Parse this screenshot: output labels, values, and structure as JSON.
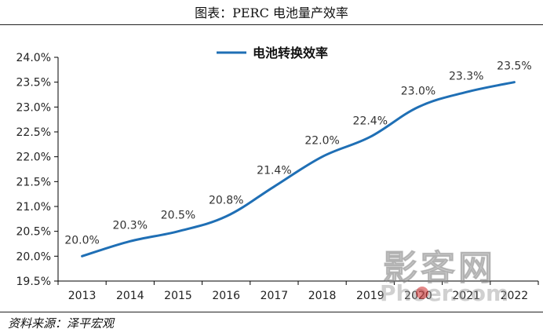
{
  "figure_title": "图表：PERC 电池量产效率",
  "source_text": "资料来源：泽平宏观",
  "watermark": {
    "name": "影客网",
    "site": "Phoer.com"
  },
  "colors": {
    "line": "#1f6fb5",
    "axis": "#000000",
    "text": "#222222"
  },
  "chart_data": {
    "type": "line",
    "x": [
      "2013",
      "2014",
      "2015",
      "2016",
      "2017",
      "2018",
      "2019",
      "2020",
      "2021",
      "2022"
    ],
    "series": [
      {
        "name": "电池转换效率",
        "values": [
          20.0,
          20.3,
          20.5,
          20.8,
          21.4,
          22.0,
          22.4,
          23.0,
          23.3,
          23.5
        ],
        "labels": [
          "20.0%",
          "20.3%",
          "20.5%",
          "20.8%",
          "21.4%",
          "22.0%",
          "22.4%",
          "23.0%",
          "23.3%",
          "23.5%"
        ]
      }
    ],
    "yticks": [
      "19.5%",
      "20.0%",
      "20.5%",
      "21.0%",
      "21.5%",
      "22.0%",
      "22.5%",
      "23.0%",
      "23.5%",
      "24.0%"
    ],
    "ylim": [
      19.5,
      24.0
    ],
    "grid": false,
    "legend": "top-center",
    "smooth": true
  }
}
